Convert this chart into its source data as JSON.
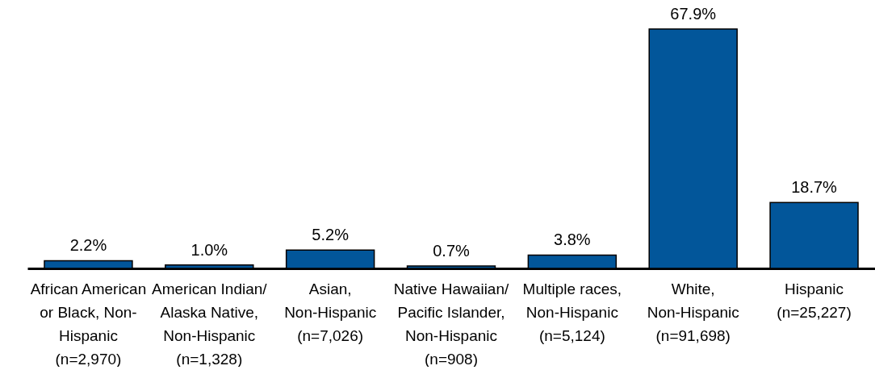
{
  "chart_data": {
    "type": "bar",
    "categories": [
      "African American\nor Black, Non-\nHispanic\n(n=2,970)",
      "American Indian/\nAlaska Native,\nNon-Hispanic\n(n=1,328)",
      "Asian,\nNon-Hispanic\n(n=7,026)",
      "Native Hawaiian/\nPacific Islander,\nNon-Hispanic\n(n=908)",
      "Multiple races,\nNon-Hispanic\n(n=5,124)",
      "White,\nNon-Hispanic\n(n=91,698)",
      "Hispanic\n(n=25,227)"
    ],
    "values": [
      2.2,
      1.0,
      5.2,
      0.7,
      3.8,
      67.9,
      18.7
    ],
    "value_labels": [
      "2.2%",
      "1.0%",
      "5.2%",
      "0.7%",
      "3.8%",
      "67.9%",
      "18.7%"
    ],
    "color": "#02569a"
  }
}
